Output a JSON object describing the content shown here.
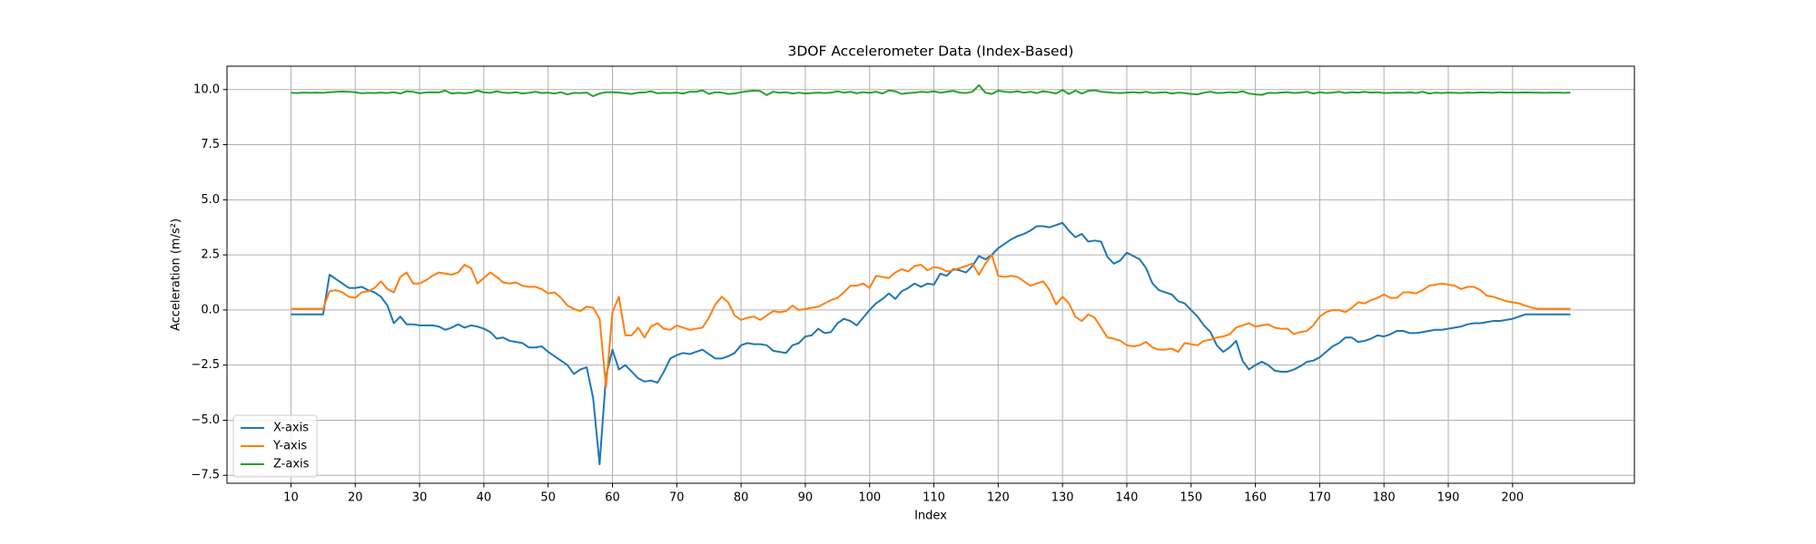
{
  "chart_data": {
    "type": "line",
    "title": "3DOF Accelerometer Data (Index-Based)",
    "x_label": "Index",
    "y_label": "Acceleration (m/s²)",
    "x": [
      10,
      11,
      12,
      13,
      14,
      15,
      16,
      17,
      18,
      19,
      20,
      21,
      22,
      23,
      24,
      25,
      26,
      27,
      28,
      29,
      30,
      31,
      32,
      33,
      34,
      35,
      36,
      37,
      38,
      39,
      40,
      41,
      42,
      43,
      44,
      45,
      46,
      47,
      48,
      49,
      50,
      51,
      52,
      53,
      54,
      55,
      56,
      57,
      58,
      59,
      60,
      61,
      62,
      63,
      64,
      65,
      66,
      67,
      68,
      69,
      70,
      71,
      72,
      73,
      74,
      75,
      76,
      77,
      78,
      79,
      80,
      81,
      82,
      83,
      84,
      85,
      86,
      87,
      88,
      89,
      90,
      91,
      92,
      93,
      94,
      95,
      96,
      97,
      98,
      99,
      100,
      101,
      102,
      103,
      104,
      105,
      106,
      107,
      108,
      109,
      110,
      111,
      112,
      113,
      114,
      115,
      116,
      117,
      118,
      119,
      120,
      121,
      122,
      123,
      124,
      125,
      126,
      127,
      128,
      129,
      130,
      131,
      132,
      133,
      134,
      135,
      136,
      137,
      138,
      139,
      140,
      141,
      142,
      143,
      144,
      145,
      146,
      147,
      148,
      149,
      150,
      151,
      152,
      153,
      154,
      155,
      156,
      157,
      158,
      159,
      160,
      161,
      162,
      163,
      164,
      165,
      166,
      167,
      168,
      169,
      170,
      171,
      172,
      173,
      174,
      175,
      176,
      177,
      178,
      179,
      180,
      181,
      182,
      183,
      184,
      185,
      186,
      187,
      188,
      189,
      190,
      191,
      192,
      193,
      194,
      195,
      196,
      197,
      198,
      199,
      200,
      201,
      202,
      203,
      204,
      205,
      206,
      207,
      208,
      209
    ],
    "series": [
      {
        "name": "X-axis",
        "color": "#1f77b4",
        "values": [
          -0.2,
          -0.2,
          -0.2,
          -0.2,
          -0.2,
          -0.2,
          1.6,
          1.4,
          1.2,
          1.0,
          1.0,
          1.05,
          0.9,
          0.8,
          0.6,
          0.2,
          -0.6,
          -0.3,
          -0.65,
          -0.65,
          -0.7,
          -0.7,
          -0.7,
          -0.75,
          -0.9,
          -0.8,
          -0.65,
          -0.8,
          -0.7,
          -0.75,
          -0.85,
          -1.0,
          -1.3,
          -1.25,
          -1.4,
          -1.45,
          -1.5,
          -1.7,
          -1.7,
          -1.65,
          -1.9,
          -2.1,
          -2.3,
          -2.5,
          -2.9,
          -2.7,
          -2.6,
          -4.0,
          -7.0,
          -3.0,
          -1.8,
          -2.7,
          -2.5,
          -2.8,
          -3.1,
          -3.25,
          -3.2,
          -3.3,
          -2.8,
          -2.2,
          -2.05,
          -1.95,
          -2.0,
          -1.9,
          -1.8,
          -2.0,
          -2.2,
          -2.2,
          -2.1,
          -1.95,
          -1.6,
          -1.5,
          -1.55,
          -1.55,
          -1.6,
          -1.85,
          -1.9,
          -1.95,
          -1.6,
          -1.5,
          -1.2,
          -1.15,
          -0.85,
          -1.05,
          -1.0,
          -0.6,
          -0.4,
          -0.5,
          -0.7,
          -0.35,
          0.0,
          0.3,
          0.5,
          0.75,
          0.5,
          0.85,
          1.0,
          1.2,
          1.05,
          1.2,
          1.15,
          1.65,
          1.55,
          1.85,
          1.8,
          1.7,
          2.0,
          2.45,
          2.3,
          2.5,
          2.8,
          3.0,
          3.2,
          3.35,
          3.45,
          3.6,
          3.8,
          3.8,
          3.75,
          3.85,
          3.95,
          3.6,
          3.3,
          3.45,
          3.1,
          3.15,
          3.1,
          2.4,
          2.1,
          2.25,
          2.6,
          2.45,
          2.3,
          1.9,
          1.2,
          0.9,
          0.8,
          0.7,
          0.4,
          0.3,
          0.0,
          -0.3,
          -0.7,
          -1.0,
          -1.6,
          -1.9,
          -1.7,
          -1.4,
          -2.3,
          -2.7,
          -2.5,
          -2.35,
          -2.5,
          -2.75,
          -2.8,
          -2.8,
          -2.7,
          -2.55,
          -2.35,
          -2.3,
          -2.15,
          -1.9,
          -1.65,
          -1.5,
          -1.25,
          -1.25,
          -1.45,
          -1.4,
          -1.3,
          -1.15,
          -1.2,
          -1.1,
          -0.95,
          -0.95,
          -1.05,
          -1.05,
          -1.0,
          -0.95,
          -0.9,
          -0.9,
          -0.85,
          -0.8,
          -0.75,
          -0.65,
          -0.6,
          -0.6,
          -0.55,
          -0.5,
          -0.5,
          -0.45,
          -0.4,
          -0.3,
          -0.2,
          -0.2,
          -0.2,
          -0.2,
          -0.2,
          -0.2,
          -0.2,
          -0.2
        ]
      },
      {
        "name": "Y-axis",
        "color": "#ff7f0e",
        "values": [
          0.05,
          0.05,
          0.05,
          0.05,
          0.05,
          0.05,
          0.85,
          0.9,
          0.8,
          0.6,
          0.55,
          0.8,
          0.85,
          1.0,
          1.3,
          0.95,
          0.8,
          1.5,
          1.7,
          1.2,
          1.2,
          1.35,
          1.55,
          1.7,
          1.65,
          1.6,
          1.7,
          2.05,
          1.9,
          1.2,
          1.45,
          1.7,
          1.5,
          1.25,
          1.2,
          1.25,
          1.1,
          1.05,
          1.05,
          0.95,
          0.75,
          0.8,
          0.55,
          0.2,
          0.05,
          -0.05,
          0.15,
          0.1,
          -0.4,
          -3.5,
          -0.1,
          0.6,
          -1.15,
          -1.15,
          -0.8,
          -1.25,
          -0.75,
          -0.6,
          -0.85,
          -0.9,
          -0.7,
          -0.8,
          -0.9,
          -0.85,
          -0.8,
          -0.35,
          0.25,
          0.6,
          0.35,
          -0.25,
          -0.45,
          -0.35,
          -0.3,
          -0.45,
          -0.25,
          -0.05,
          -0.1,
          -0.05,
          0.2,
          0.0,
          0.05,
          0.1,
          0.15,
          0.3,
          0.45,
          0.55,
          0.8,
          1.1,
          1.1,
          1.2,
          1.0,
          1.55,
          1.5,
          1.45,
          1.7,
          1.85,
          1.75,
          2.0,
          2.05,
          1.8,
          1.95,
          1.9,
          1.75,
          1.8,
          1.9,
          2.0,
          2.1,
          1.6,
          2.1,
          2.5,
          1.55,
          1.5,
          1.55,
          1.5,
          1.3,
          1.1,
          1.2,
          1.3,
          0.9,
          0.25,
          0.6,
          0.3,
          -0.3,
          -0.5,
          -0.2,
          -0.35,
          -0.8,
          -1.25,
          -1.3,
          -1.4,
          -1.6,
          -1.65,
          -1.6,
          -1.45,
          -1.7,
          -1.8,
          -1.8,
          -1.75,
          -1.9,
          -1.5,
          -1.55,
          -1.6,
          -1.4,
          -1.35,
          -1.25,
          -1.2,
          -1.1,
          -0.8,
          -0.7,
          -0.6,
          -0.75,
          -0.7,
          -0.65,
          -0.8,
          -0.85,
          -0.85,
          -1.1,
          -1.0,
          -0.95,
          -0.7,
          -0.3,
          -0.1,
          0.0,
          0.0,
          -0.1,
          0.1,
          0.35,
          0.3,
          0.45,
          0.55,
          0.7,
          0.55,
          0.55,
          0.8,
          0.8,
          0.75,
          0.9,
          1.1,
          1.15,
          1.2,
          1.15,
          1.1,
          0.95,
          1.05,
          1.05,
          0.9,
          0.65,
          0.6,
          0.5,
          0.4,
          0.35,
          0.3,
          0.2,
          0.1,
          0.05,
          0.05,
          0.05,
          0.05,
          0.05,
          0.05
        ]
      },
      {
        "name": "Z-axis",
        "color": "#2ca02c",
        "values": [
          9.85,
          9.84,
          9.86,
          9.85,
          9.86,
          9.85,
          9.88,
          9.9,
          9.91,
          9.9,
          9.88,
          9.83,
          9.85,
          9.84,
          9.86,
          9.84,
          9.88,
          9.82,
          9.92,
          9.9,
          9.83,
          9.87,
          9.88,
          9.87,
          9.95,
          9.82,
          9.85,
          9.83,
          9.86,
          9.95,
          9.87,
          9.85,
          9.92,
          9.86,
          9.84,
          9.88,
          9.82,
          9.85,
          9.9,
          9.84,
          9.86,
          9.82,
          9.88,
          9.78,
          9.85,
          9.84,
          9.86,
          9.7,
          9.82,
          9.88,
          9.88,
          9.86,
          9.83,
          9.8,
          9.86,
          9.87,
          9.92,
          9.83,
          9.85,
          9.84,
          9.86,
          9.82,
          9.9,
          9.9,
          9.96,
          9.8,
          9.88,
          9.86,
          9.8,
          9.82,
          9.88,
          9.92,
          9.95,
          9.93,
          9.75,
          9.9,
          9.85,
          9.88,
          9.82,
          9.86,
          9.82,
          9.84,
          9.86,
          9.84,
          9.86,
          9.92,
          9.86,
          9.9,
          9.83,
          9.88,
          9.85,
          9.9,
          9.82,
          9.96,
          9.92,
          9.8,
          9.84,
          9.86,
          9.9,
          9.88,
          9.92,
          9.86,
          9.9,
          9.94,
          9.86,
          9.84,
          9.9,
          10.2,
          9.86,
          9.8,
          9.95,
          9.9,
          9.88,
          9.92,
          9.86,
          9.9,
          9.84,
          9.92,
          9.88,
          9.82,
          9.98,
          9.8,
          9.95,
          9.82,
          9.94,
          9.97,
          9.9,
          9.88,
          9.85,
          9.84,
          9.86,
          9.88,
          9.85,
          9.9,
          9.84,
          9.86,
          9.88,
          9.82,
          9.86,
          9.84,
          9.8,
          9.78,
          9.86,
          9.9,
          9.84,
          9.85,
          9.88,
          9.86,
          9.92,
          9.82,
          9.78,
          9.76,
          9.85,
          9.84,
          9.86,
          9.88,
          9.84,
          9.86,
          9.9,
          9.82,
          9.88,
          9.84,
          9.86,
          9.9,
          9.84,
          9.88,
          9.86,
          9.9,
          9.86,
          9.88,
          9.84,
          9.85,
          9.86,
          9.85,
          9.87,
          9.84,
          9.9,
          9.82,
          9.86,
          9.84,
          9.86,
          9.85,
          9.84,
          9.86,
          9.85,
          9.87,
          9.86,
          9.85,
          9.88,
          9.86,
          9.86,
          9.86,
          9.87,
          9.86,
          9.86,
          9.85,
          9.86,
          9.86,
          9.85,
          9.86
        ]
      }
    ],
    "xlim": [
      0.05,
      218.95
    ],
    "ylim": [
      -7.86,
      11.06
    ],
    "xticks": [
      10,
      20,
      30,
      40,
      50,
      60,
      70,
      80,
      90,
      100,
      110,
      120,
      130,
      140,
      150,
      160,
      170,
      180,
      190,
      200
    ],
    "yticks": [
      {
        "value": -7.5,
        "label": "−7.5"
      },
      {
        "value": -5,
        "label": "−5.0"
      },
      {
        "value": -2.5,
        "label": "−2.5"
      },
      {
        "value": 0,
        "label": "0.0"
      },
      2.5,
      {
        "value": 5,
        "label": "5.0"
      },
      7.5,
      {
        "value": 10,
        "label": "10.0"
      }
    ],
    "grid": true,
    "legend": "lower left"
  }
}
